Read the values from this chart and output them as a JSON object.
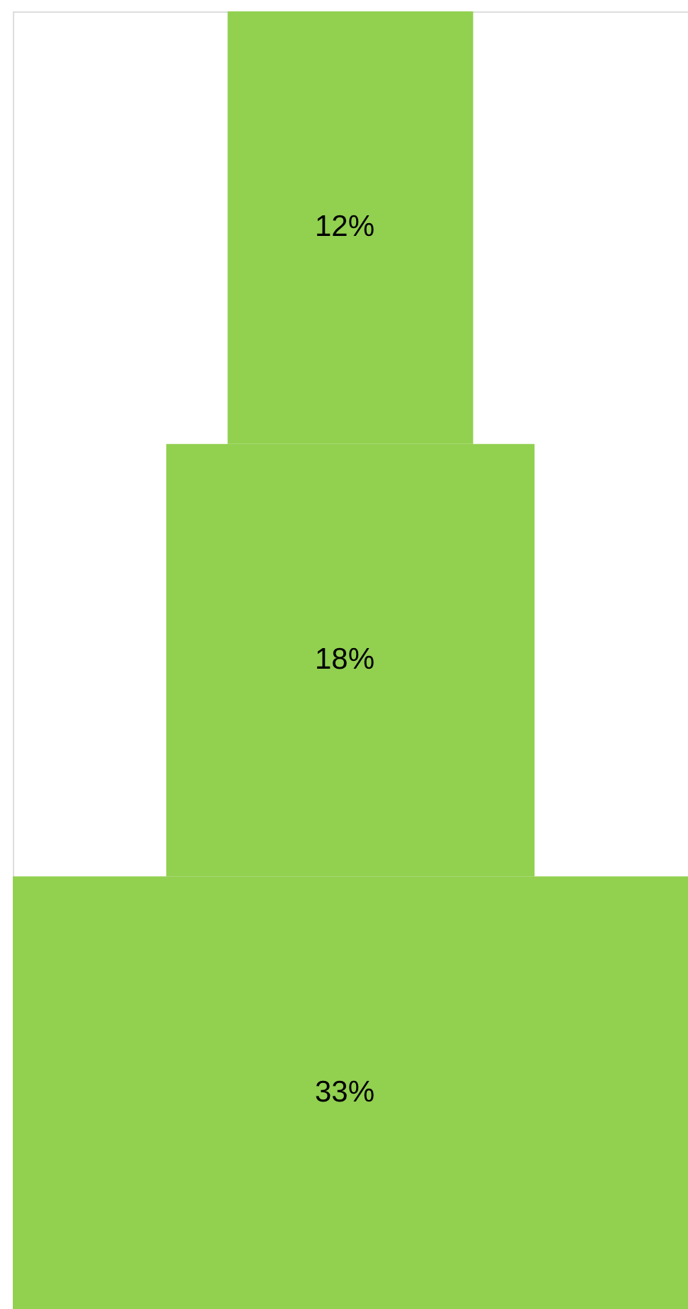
{
  "chart_data": {
    "type": "other",
    "categories": [
      null,
      null,
      null
    ],
    "values": [
      12,
      18,
      33
    ],
    "value_labels": [
      "12%",
      "18%",
      "33%"
    ],
    "color": "#92d050"
  }
}
